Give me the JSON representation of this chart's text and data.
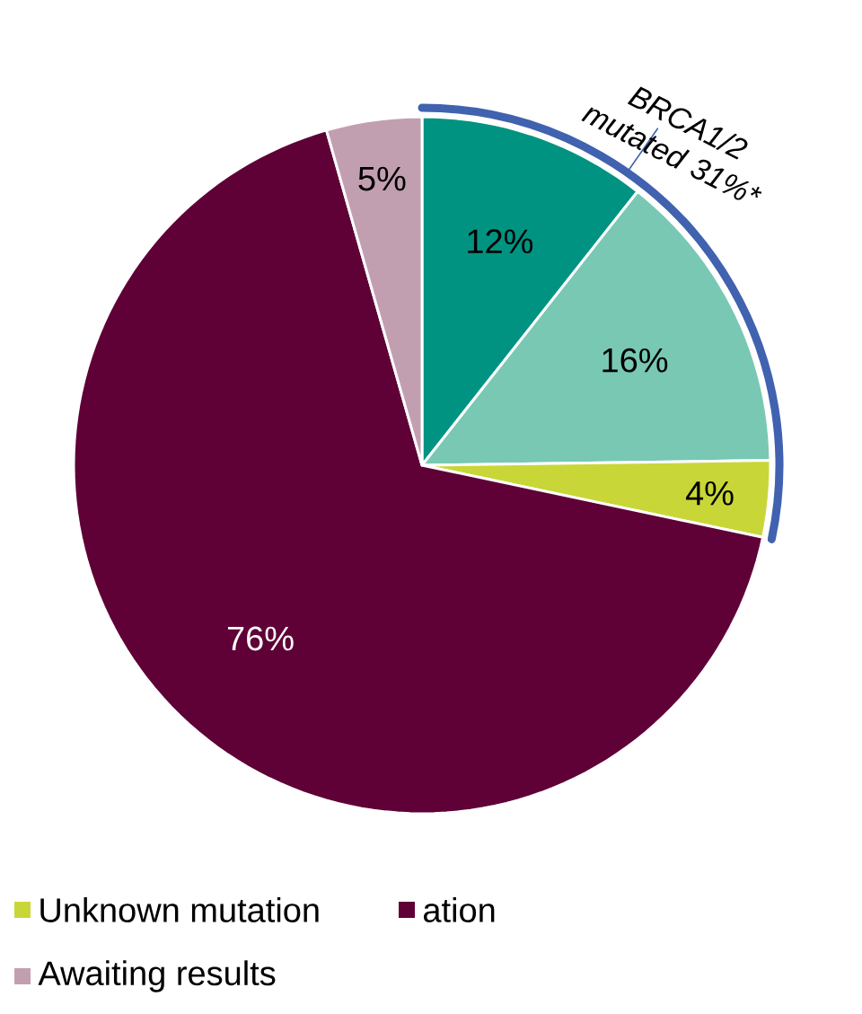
{
  "chart_data": {
    "type": "pie",
    "categories": [
      null,
      null,
      "Unknown mutation",
      "ation",
      "Awaiting results"
    ],
    "values": [
      12,
      16,
      4,
      76,
      5
    ],
    "colors": [
      "#009382",
      "#78c8b4",
      "#c8d737",
      "#5f0037",
      "#c29fb0"
    ],
    "value_labels": [
      "12%",
      "16%",
      "4%",
      "76%",
      "5%"
    ],
    "legend": "bottom",
    "annotations": [
      "BRCA1/2 mutated 31%*"
    ]
  }
}
